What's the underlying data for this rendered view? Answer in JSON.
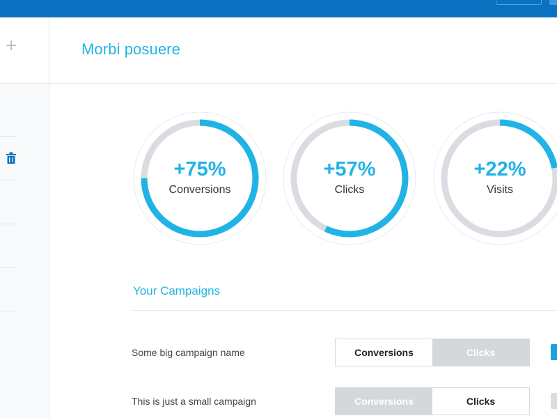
{
  "header": {
    "title": "Morbi posuere"
  },
  "sidebar": {
    "add_icon": "plus-icon",
    "active_icon": "trash-icon",
    "active_color": "#0a72c0"
  },
  "stats": [
    {
      "value": "+75%",
      "label": "Conversions",
      "fraction": 0.75
    },
    {
      "value": "+57%",
      "label": "Clicks",
      "fraction": 0.57
    },
    {
      "value": "+22%",
      "label": "Visits",
      "fraction": 0.22
    }
  ],
  "campaigns": {
    "title": "Your Campaigns",
    "rows": [
      {
        "name": "Some big campaign name",
        "option_a": "Conversions",
        "option_b": "Clicks",
        "selected": "Conversions",
        "toggle_on": true
      },
      {
        "name": "This is just a small campaign",
        "option_a": "Conversions",
        "option_b": "Clicks",
        "selected": "Clicks",
        "toggle_on": false
      }
    ]
  },
  "colors": {
    "accent": "#20b3e6",
    "topbar": "#0a72c0",
    "track": "#d9dde1"
  }
}
